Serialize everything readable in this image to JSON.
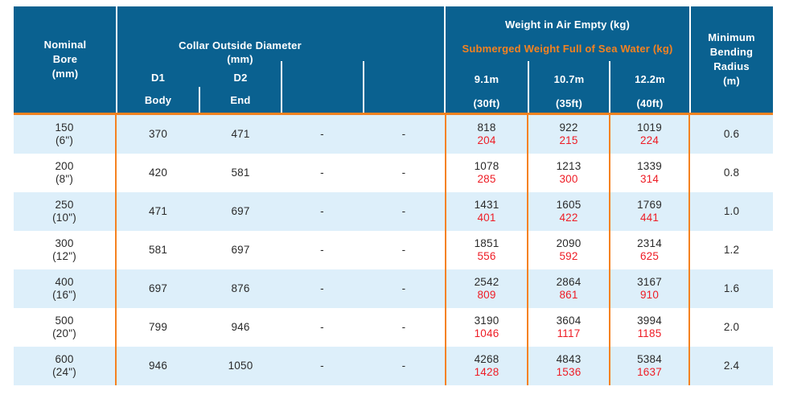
{
  "table": {
    "colors": {
      "header_bg": "#0a6190",
      "accent_orange": "#f58220",
      "row_alt_blue": "#ddeffa",
      "submerged_red": "#ee1c25"
    },
    "header": {
      "nominal": [
        "Nominal",
        "Bore",
        "(mm)"
      ],
      "collar": {
        "title": "Collar Outside Diameter",
        "unit": "(mm)",
        "d1": "D1",
        "d2": "D2",
        "d1_sub": "Body",
        "d2_sub": "End"
      },
      "weight": {
        "title_air": "Weight in Air Empty (kg)",
        "title_submerged": "Submerged Weight Full of Sea Water (kg)",
        "lengths": [
          "9.1m",
          "10.7m",
          "12.2m"
        ],
        "lengths_ft": [
          "(30ft)",
          "(35ft)",
          "(40ft)"
        ]
      },
      "min_bending": [
        "Minimum",
        "Bending",
        "Radius",
        "(m)"
      ]
    },
    "rows": [
      {
        "bore": "150",
        "bore_in": "(6\")",
        "d1": "370",
        "d2": "471",
        "c4": "-",
        "c5": "-",
        "w1_air": "818",
        "w1_sub": "204",
        "w2_air": "922",
        "w2_sub": "215",
        "w3_air": "1019",
        "w3_sub": "224",
        "radius": "0.6"
      },
      {
        "bore": "200",
        "bore_in": "(8\")",
        "d1": "420",
        "d2": "581",
        "c4": "-",
        "c5": "-",
        "w1_air": "1078",
        "w1_sub": "285",
        "w2_air": "1213",
        "w2_sub": "300",
        "w3_air": "1339",
        "w3_sub": "314",
        "radius": "0.8"
      },
      {
        "bore": "250",
        "bore_in": "(10\")",
        "d1": "471",
        "d2": "697",
        "c4": "-",
        "c5": "-",
        "w1_air": "1431",
        "w1_sub": "401",
        "w2_air": "1605",
        "w2_sub": "422",
        "w3_air": "1769",
        "w3_sub": "441",
        "radius": "1.0"
      },
      {
        "bore": "300",
        "bore_in": "(12\")",
        "d1": "581",
        "d2": "697",
        "c4": "-",
        "c5": "-",
        "w1_air": "1851",
        "w1_sub": "556",
        "w2_air": "2090",
        "w2_sub": "592",
        "w3_air": "2314",
        "w3_sub": "625",
        "radius": "1.2"
      },
      {
        "bore": "400",
        "bore_in": "(16\")",
        "d1": "697",
        "d2": "876",
        "c4": "-",
        "c5": "-",
        "w1_air": "2542",
        "w1_sub": "809",
        "w2_air": "2864",
        "w2_sub": "861",
        "w3_air": "3167",
        "w3_sub": "910",
        "radius": "1.6"
      },
      {
        "bore": "500",
        "bore_in": "(20\")",
        "d1": "799",
        "d2": "946",
        "c4": "-",
        "c5": "-",
        "w1_air": "3190",
        "w1_sub": "1046",
        "w2_air": "3604",
        "w2_sub": "1117",
        "w3_air": "3994",
        "w3_sub": "1185",
        "radius": "2.0"
      },
      {
        "bore": "600",
        "bore_in": "(24\")",
        "d1": "946",
        "d2": "1050",
        "c4": "-",
        "c5": "-",
        "w1_air": "4268",
        "w1_sub": "1428",
        "w2_air": "4843",
        "w2_sub": "1536",
        "w3_air": "5384",
        "w3_sub": "1637",
        "radius": "2.4"
      }
    ]
  }
}
